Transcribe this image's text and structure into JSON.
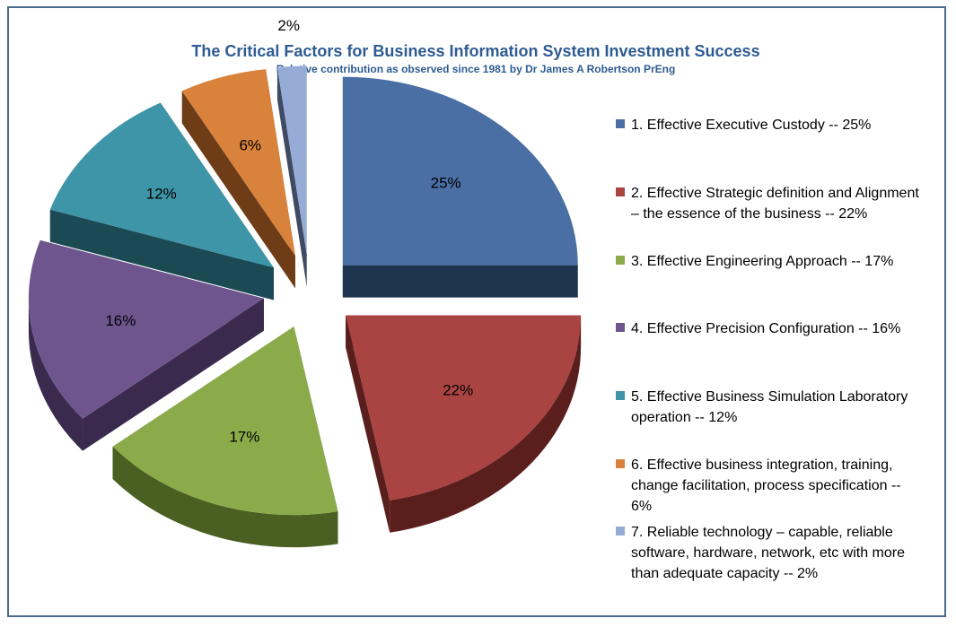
{
  "chart_data": {
    "type": "pie",
    "title": "The Critical Factors for Business Information System Investment Success",
    "subtitle": "Relative contribution as observed since 1981 by Dr James A Robertson PrEng",
    "legend_position": "right",
    "slices": [
      {
        "label": "1. Effective Executive Custody -- 25%",
        "value": 25,
        "data_label": "25%",
        "color": "#4a6fa5",
        "side": "#1e3550"
      },
      {
        "label": "2. Effective Strategic definition and Alignment – the essence of the business -- 22%",
        "value": 22,
        "data_label": "22%",
        "color": "#a94442",
        "side": "#5a1f1d"
      },
      {
        "label": "3. Effective Engineering Approach -- 17%",
        "value": 17,
        "data_label": "17%",
        "color": "#8bab4a",
        "side": "#4a5f22"
      },
      {
        "label": "4. Effective Precision Configuration -- 16%",
        "value": 16,
        "data_label": "16%",
        "color": "#6f558e",
        "side": "#3a2b4e"
      },
      {
        "label": "5. Effective Business Simulation Laboratory operation -- 12%",
        "value": 12,
        "data_label": "12%",
        "color": "#3e95a8",
        "side": "#1b4a55"
      },
      {
        "label": "6. Effective business integration, training, change facilitation, process specification -- 6%",
        "value": 6,
        "data_label": "6%",
        "color": "#d9823b",
        "side": "#6e3d17"
      },
      {
        "label": "7. Reliable technology – capable, reliable software, hardware, network, etc with more than adequate capacity -- 2%",
        "value": 2,
        "data_label": "2%",
        "color": "#96acd6",
        "side": "#3e4b63"
      }
    ]
  }
}
